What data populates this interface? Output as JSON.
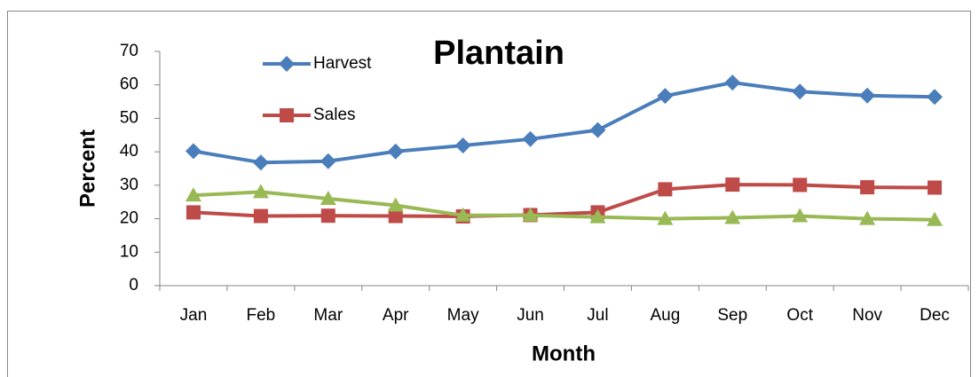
{
  "chart_data": {
    "type": "line",
    "title": "Plantain",
    "x_label": "Month",
    "y_label": "Percent",
    "categories": [
      "Jan",
      "Feb",
      "Mar",
      "Apr",
      "May",
      "Jun",
      "Jul",
      "Aug",
      "Sep",
      "Oct",
      "Nov",
      "Dec"
    ],
    "series": [
      {
        "name": "Harvest",
        "color": "#4a7ebb",
        "marker": "diamond",
        "values": [
          40.2,
          36.8,
          37.2,
          40.1,
          41.9,
          43.8,
          46.5,
          56.7,
          60.7,
          58.0,
          56.8,
          56.4
        ]
      },
      {
        "name": "Sales",
        "color": "#be4b48",
        "marker": "square",
        "values": [
          21.9,
          20.8,
          20.9,
          20.8,
          20.7,
          21.1,
          21.9,
          28.8,
          30.2,
          30.1,
          29.4,
          29.3
        ]
      },
      {
        "color": "#98b954",
        "marker": "triangle",
        "values": [
          27.0,
          28.0,
          26.0,
          24.0,
          21.0,
          21.0,
          20.5,
          20.0,
          20.3,
          20.8,
          20.0,
          19.7
        ]
      }
    ],
    "ylim": [
      0,
      70
    ],
    "yticks": [
      0,
      10,
      20,
      30,
      40,
      50,
      60,
      70
    ],
    "grid": false,
    "legend": "top-left"
  }
}
